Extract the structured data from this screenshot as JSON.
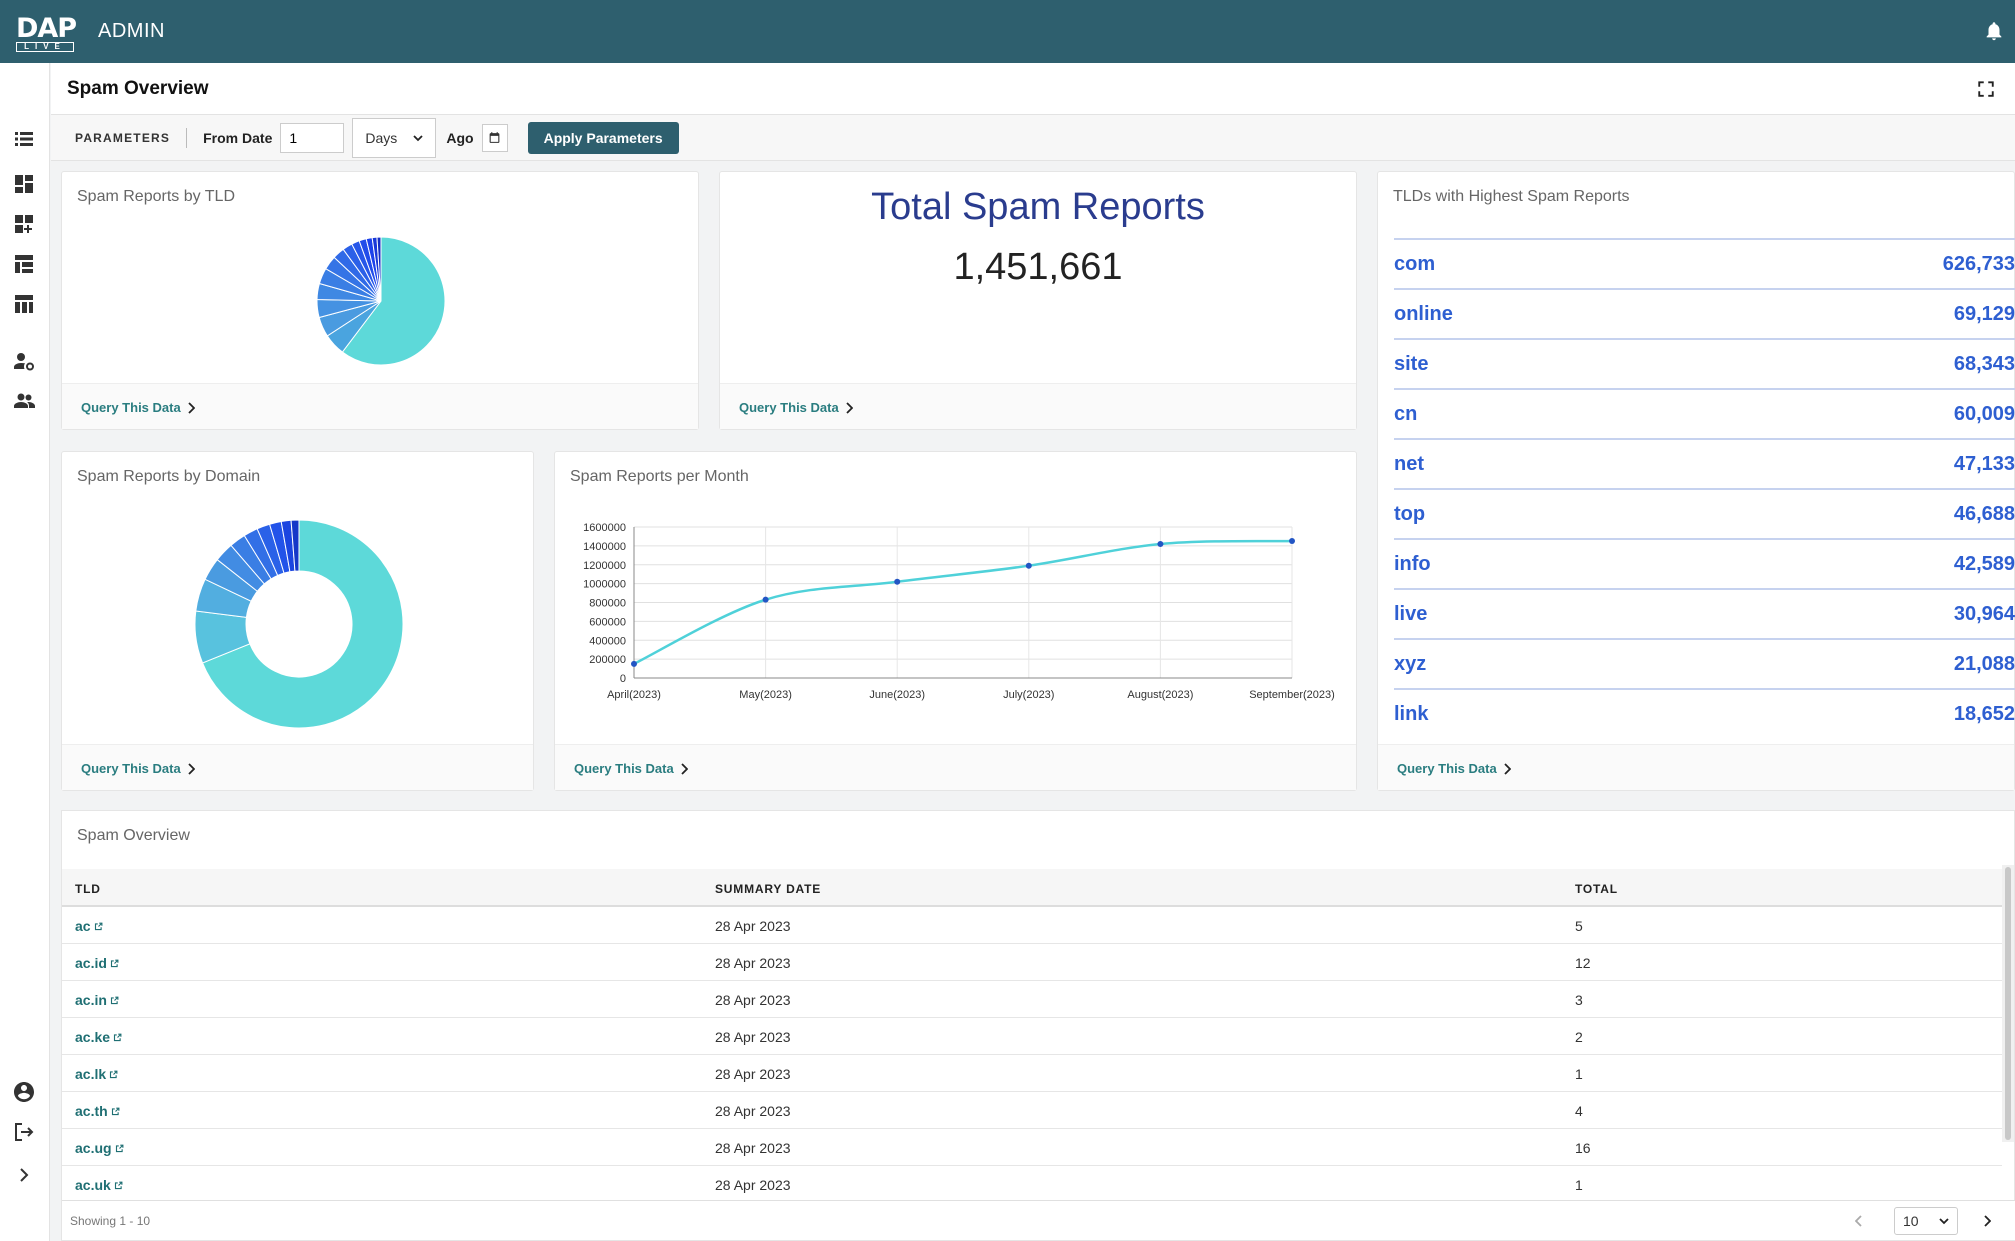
{
  "topbar": {
    "logo_text": "DAP",
    "logo_sub": "LIVE",
    "app_name": "ADMIN"
  },
  "page": {
    "title": "Spam Overview"
  },
  "params": {
    "label": "PARAMETERS",
    "from_label": "From Date",
    "from_value": "1",
    "unit": "Days",
    "ago_label": "Ago",
    "apply_label": "Apply Parameters"
  },
  "cards": {
    "tld_pie": {
      "title": "Spam Reports by TLD",
      "link": "Query This Data"
    },
    "total": {
      "title": "Total Spam Reports",
      "value": "1,451,661",
      "link": "Query This Data"
    },
    "top_tlds": {
      "title": "TLDs with Highest Spam Reports",
      "link": "Query This Data",
      "rows": [
        {
          "tld": "com",
          "count": "626,733"
        },
        {
          "tld": "online",
          "count": "69,129"
        },
        {
          "tld": "site",
          "count": "68,343"
        },
        {
          "tld": "cn",
          "count": "60,009"
        },
        {
          "tld": "net",
          "count": "47,133"
        },
        {
          "tld": "top",
          "count": "46,688"
        },
        {
          "tld": "info",
          "count": "42,589"
        },
        {
          "tld": "live",
          "count": "30,964"
        },
        {
          "tld": "xyz",
          "count": "21,088"
        },
        {
          "tld": "link",
          "count": "18,652"
        }
      ]
    },
    "domain_donut": {
      "title": "Spam Reports by Domain",
      "link": "Query This Data"
    },
    "monthly": {
      "title": "Spam Reports per Month",
      "link": "Query This Data"
    }
  },
  "chart_data": [
    {
      "type": "pie",
      "title": "Spam Reports by TLD",
      "values": [
        0.6,
        0.055,
        0.05,
        0.045,
        0.04,
        0.04,
        0.035,
        0.03,
        0.025,
        0.02,
        0.018,
        0.015,
        0.012,
        0.01
      ],
      "colors": [
        "#5dd9d9",
        "#4aa4df",
        "#4a9be0",
        "#4592e2",
        "#3f88e3",
        "#3a7ee4",
        "#3574e6",
        "#306ae7",
        "#2b60e8",
        "#2656e9",
        "#214cea",
        "#1c42eb",
        "#1838d8",
        "#142ec4"
      ]
    },
    {
      "type": "pie",
      "title": "Spam Reports by Domain",
      "donut": true,
      "values": [
        0.68,
        0.08,
        0.05,
        0.035,
        0.03,
        0.025,
        0.022,
        0.02,
        0.018,
        0.015,
        0.012
      ],
      "colors": [
        "#5dd9d9",
        "#58c2de",
        "#52aee0",
        "#4a9be0",
        "#428ce3",
        "#3a7ee4",
        "#326fe6",
        "#2a61e8",
        "#2253e9",
        "#1b45e0",
        "#1538c8"
      ]
    },
    {
      "type": "line",
      "title": "Spam Reports per Month",
      "categories": [
        "April(2023)",
        "May(2023)",
        "June(2023)",
        "July(2023)",
        "August(2023)",
        "September(2023)"
      ],
      "values": [
        150000,
        830000,
        1020000,
        1190000,
        1420000,
        1451661
      ],
      "ylim": [
        0,
        1600000
      ],
      "yticks": [
        "0",
        "200000",
        "400000",
        "600000",
        "800000",
        "1000000",
        "1200000",
        "1400000",
        "1600000"
      ],
      "line_color": "#4fd1d9",
      "point_color": "#2255c4",
      "grid": true
    }
  ],
  "table": {
    "title": "Spam Overview",
    "headers": {
      "tld": "TLD",
      "date": "SUMMARY DATE",
      "total": "TOTAL"
    },
    "rows": [
      {
        "tld": "ac",
        "date": "28 Apr 2023",
        "total": "5"
      },
      {
        "tld": "ac.id",
        "date": "28 Apr 2023",
        "total": "12"
      },
      {
        "tld": "ac.in",
        "date": "28 Apr 2023",
        "total": "3"
      },
      {
        "tld": "ac.ke",
        "date": "28 Apr 2023",
        "total": "2"
      },
      {
        "tld": "ac.lk",
        "date": "28 Apr 2023",
        "total": "1"
      },
      {
        "tld": "ac.th",
        "date": "28 Apr 2023",
        "total": "4"
      },
      {
        "tld": "ac.ug",
        "date": "28 Apr 2023",
        "total": "16"
      },
      {
        "tld": "ac.uk",
        "date": "28 Apr 2023",
        "total": "1"
      }
    ],
    "showing": "Showing 1 - 10",
    "page_size": "10"
  }
}
